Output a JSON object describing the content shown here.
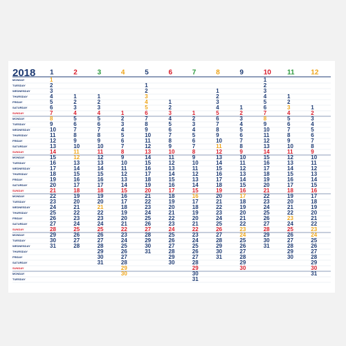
{
  "calendar": {
    "year": "2018",
    "weekdays": [
      "MONDAY",
      "TUESDAY",
      "WEDNESDAY",
      "THURSDAY",
      "FRIDAY",
      "SATURDAY",
      "SUNDAY"
    ],
    "day_color": "#1f3c74",
    "sunday_color": "#d81e2c",
    "holiday_color": "#eea51b",
    "line_color": "#1f3c74",
    "months": [
      {
        "number": "1",
        "color": "#1f3c74",
        "holidays": [
          1,
          8
        ],
        "days": [
          1,
          2,
          3,
          4,
          5,
          6,
          7,
          8,
          9,
          10,
          11,
          12,
          13,
          14,
          15,
          16,
          17,
          18,
          19,
          20,
          21,
          22,
          23,
          24,
          25,
          26,
          27,
          28,
          29,
          30,
          31
        ]
      },
      {
        "number": "2",
        "color": "#d81e2c",
        "holidays": [
          11,
          12
        ],
        "days": [
          1,
          2,
          3,
          4,
          5,
          6,
          7,
          8,
          9,
          10,
          11,
          12,
          13,
          14,
          15,
          16,
          17,
          18,
          19,
          20,
          21,
          22,
          23,
          24,
          25,
          26,
          27,
          28
        ]
      },
      {
        "number": "3",
        "color": "#2e9a3f",
        "holidays": [
          21
        ],
        "days": [
          1,
          2,
          3,
          4,
          5,
          6,
          7,
          8,
          9,
          10,
          11,
          12,
          13,
          14,
          15,
          16,
          17,
          18,
          19,
          20,
          21,
          22,
          23,
          24,
          25,
          26,
          27,
          28,
          29,
          30,
          31
        ]
      },
      {
        "number": "4",
        "color": "#eea51b",
        "holidays": [
          29,
          30
        ],
        "days": [
          1,
          2,
          3,
          4,
          5,
          6,
          7,
          8,
          9,
          10,
          11,
          12,
          13,
          14,
          15,
          16,
          17,
          18,
          19,
          20,
          21,
          22,
          23,
          24,
          25,
          26,
          27,
          28,
          29,
          30
        ]
      },
      {
        "number": "5",
        "color": "#1f3c74",
        "holidays": [
          3,
          4,
          5
        ],
        "days": [
          1,
          2,
          3,
          4,
          5,
          6,
          7,
          8,
          9,
          10,
          11,
          12,
          13,
          14,
          15,
          16,
          17,
          18,
          19,
          20,
          21,
          22,
          23,
          24,
          25,
          26,
          27,
          28,
          29,
          30,
          31
        ]
      },
      {
        "number": "6",
        "color": "#d81e2c",
        "holidays": [],
        "days": [
          1,
          2,
          3,
          4,
          5,
          6,
          7,
          8,
          9,
          10,
          11,
          12,
          13,
          14,
          15,
          16,
          17,
          18,
          19,
          20,
          21,
          22,
          23,
          24,
          25,
          26,
          27,
          28,
          29,
          30
        ]
      },
      {
        "number": "7",
        "color": "#2e9a3f",
        "holidays": [
          16
        ],
        "days": [
          1,
          2,
          3,
          4,
          5,
          6,
          7,
          8,
          9,
          10,
          11,
          12,
          13,
          14,
          15,
          16,
          17,
          18,
          19,
          20,
          21,
          22,
          23,
          24,
          25,
          26,
          27,
          28,
          29,
          30,
          31
        ]
      },
      {
        "number": "8",
        "color": "#eea51b",
        "holidays": [
          11
        ],
        "days": [
          1,
          2,
          3,
          4,
          5,
          6,
          7,
          8,
          9,
          10,
          11,
          12,
          13,
          14,
          15,
          16,
          17,
          18,
          19,
          20,
          21,
          22,
          23,
          24,
          25,
          26,
          27,
          28,
          29,
          30,
          31
        ]
      },
      {
        "number": "9",
        "color": "#1f3c74",
        "holidays": [
          17,
          23,
          24
        ],
        "days": [
          1,
          2,
          3,
          4,
          5,
          6,
          7,
          8,
          9,
          10,
          11,
          12,
          13,
          14,
          15,
          16,
          17,
          18,
          19,
          20,
          21,
          22,
          23,
          24,
          25,
          26,
          27,
          28,
          29,
          30
        ]
      },
      {
        "number": "10",
        "color": "#d81e2c",
        "holidays": [
          8
        ],
        "days": [
          1,
          2,
          3,
          4,
          5,
          6,
          7,
          8,
          9,
          10,
          11,
          12,
          13,
          14,
          15,
          16,
          17,
          18,
          19,
          20,
          21,
          22,
          23,
          24,
          25,
          26,
          27,
          28,
          29,
          30,
          31
        ]
      },
      {
        "number": "11",
        "color": "#2e9a3f",
        "holidays": [
          3,
          23
        ],
        "days": [
          1,
          2,
          3,
          4,
          5,
          6,
          7,
          8,
          9,
          10,
          11,
          12,
          13,
          14,
          15,
          16,
          17,
          18,
          19,
          20,
          21,
          22,
          23,
          24,
          25,
          26,
          27,
          28,
          29,
          30
        ]
      },
      {
        "number": "12",
        "color": "#eea51b",
        "holidays": [
          23,
          24
        ],
        "days": [
          1,
          2,
          3,
          4,
          5,
          6,
          7,
          8,
          9,
          10,
          11,
          12,
          13,
          14,
          15,
          16,
          17,
          18,
          19,
          20,
          21,
          22,
          23,
          24,
          25,
          26,
          27,
          28,
          29,
          30,
          31
        ]
      }
    ]
  }
}
